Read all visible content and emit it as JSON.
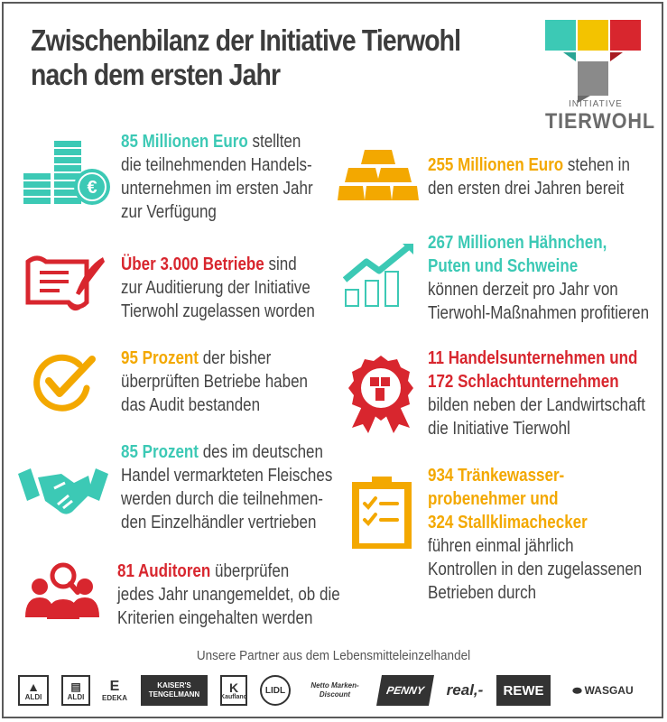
{
  "title": {
    "line1": "Zwischenbilanz der Initiative Tierwohl",
    "line2": "nach dem ersten Jahr"
  },
  "logo": {
    "small": "INITIATIVE",
    "big": "TIERWOHL",
    "colors": [
      "#3cc9b5",
      "#f3c300",
      "#d8262e",
      "#8a8a8a"
    ]
  },
  "colors": {
    "teal": "#3cc9b5",
    "red": "#d8262e",
    "yellow": "#f3a800",
    "text": "#444444"
  },
  "left": [
    {
      "icon": "euro-coins-icon",
      "highlight": "85 Millionen Euro",
      "rest_first": " stellten",
      "lines": [
        "die teilnehmenden Handels-",
        "unternehmen im ersten Jahr",
        "zur Verfügung"
      ]
    },
    {
      "icon": "certificate-quill-icon",
      "highlight": "Über 3.000 Betriebe",
      "rest_first": " sind",
      "lines": [
        "zur Auditierung der Initiative",
        "Tierwohl zugelassen worden"
      ]
    },
    {
      "icon": "checkmark-circle-icon",
      "highlight": "95 Prozent",
      "rest_first": " der bisher",
      "lines": [
        "überprüften Betriebe haben",
        "das Audit bestanden"
      ]
    },
    {
      "icon": "handshake-icon",
      "highlight": "85 Prozent",
      "rest_first": " des im deutschen",
      "lines": [
        "Handel vermarkteten Fleisches",
        "werden durch die teilnehmen-",
        "den Einzelhändler vertrieben"
      ]
    },
    {
      "icon": "auditors-magnifier-icon",
      "highlight": "81 Auditoren",
      "rest_first": " überprüfen",
      "lines": [
        "jedes Jahr unangemeldet, ob die",
        "Kriterien eingehalten werden"
      ]
    }
  ],
  "right": [
    {
      "icon": "gold-bars-icon",
      "highlight": "255 Millionen Euro",
      "rest_first": " stehen in",
      "lines": [
        "den ersten drei Jahren bereit"
      ]
    },
    {
      "icon": "growth-chart-icon",
      "highlight_lines": [
        "267 Millionen Hähnchen,",
        "Puten und Schweine"
      ],
      "lines": [
        "können derzeit pro Jahr von",
        "Tierwohl-Maßnahmen profitieren"
      ]
    },
    {
      "icon": "award-badge-icon",
      "highlight_lines": [
        "11 Handelsunternehmen und",
        "172 Schlachtunternehmen"
      ],
      "lines": [
        "bilden neben der Landwirtschaft",
        "die Initiative Tierwohl"
      ]
    },
    {
      "icon": "checklist-clipboard-icon",
      "highlight_lines": [
        "934 Tränkewasser-",
        "probenehmer und",
        "324 Stallklimachecker"
      ],
      "lines": [
        "führen einmal jährlich",
        "Kontrollen in den zugelassenen",
        "Betrieben durch"
      ]
    }
  ],
  "partners": {
    "label": "Unsere Partner aus dem Lebensmitteleinzelhandel",
    "logos": [
      "ALDI",
      "ALDI",
      "EDEKA",
      "KAISER'S TENGELMANN",
      "Kaufland",
      "LIDL",
      "Netto Marken-Discount",
      "PENNY",
      "real,-",
      "REWE",
      "WASGAU"
    ]
  }
}
